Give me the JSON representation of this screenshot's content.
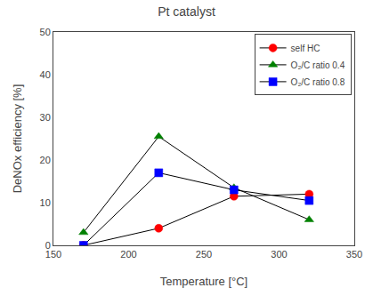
{
  "chart_data": {
    "type": "line",
    "title": "Pt catalyst",
    "x_label": "Temperature [°C]",
    "y_label": "DeNOx efficiency [%]",
    "xlim": [
      150,
      350
    ],
    "ylim": [
      0,
      50
    ],
    "xticks": [
      150,
      200,
      250,
      300,
      350
    ],
    "yticks": [
      0,
      10,
      20,
      30,
      40,
      50
    ],
    "grid": false,
    "legend": "upper right",
    "series": [
      {
        "name": "self HC",
        "x": [
          170,
          220,
          270,
          320
        ],
        "values": [
          0,
          4,
          11.5,
          12
        ],
        "color": "red",
        "marker": "circle"
      },
      {
        "name": "O₂/C ratio 0.4",
        "x": [
          170,
          220,
          270,
          320
        ],
        "values": [
          3,
          25.5,
          13.5,
          6
        ],
        "color": "green",
        "marker": "triangle-up"
      },
      {
        "name": "O₂/C ratio 0.8",
        "x": [
          170,
          220,
          270,
          320
        ],
        "values": [
          0,
          17,
          13,
          10.5
        ],
        "color": "blue",
        "marker": "square"
      }
    ]
  }
}
